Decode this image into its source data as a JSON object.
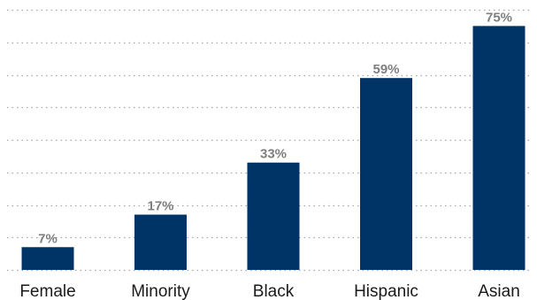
{
  "chart_data": {
    "type": "bar",
    "categories": [
      "Female",
      "Minority",
      "Black",
      "Hispanic",
      "Asian"
    ],
    "values": [
      7,
      17,
      33,
      59,
      75
    ],
    "value_labels": [
      "7%",
      "17%",
      "33%",
      "59%",
      "75%"
    ],
    "ylim": [
      0,
      80
    ],
    "grid": true,
    "colors": {
      "bar": "#003366",
      "value_label": "#7f7f7f",
      "gridline": "#a6a6a6"
    }
  }
}
